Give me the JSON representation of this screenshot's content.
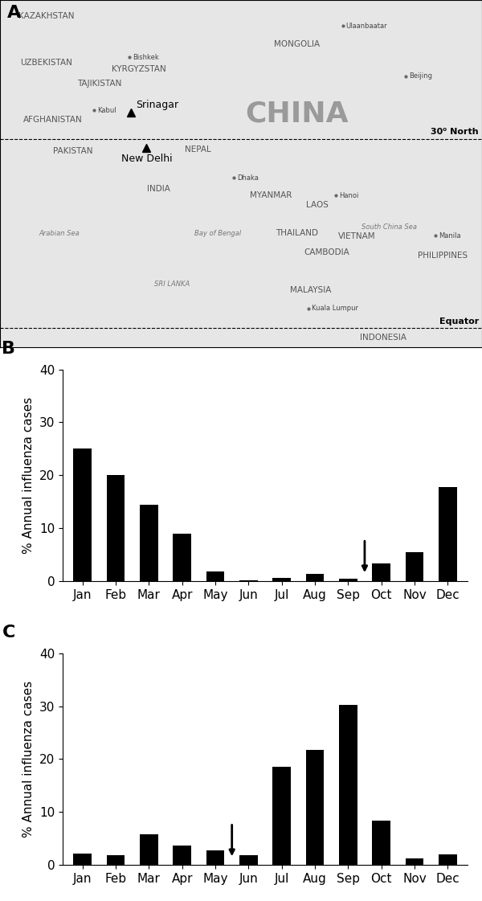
{
  "chart_data": [
    {
      "type": "map",
      "label": "A",
      "xlim": [
        55,
        128
      ],
      "ylim": [
        -3,
        52
      ],
      "tick_labels": false,
      "lines": [
        {
          "name": "30⁰ North",
          "lat": 30
        },
        {
          "name": "Equator",
          "lat": 0
        }
      ],
      "sites": [
        {
          "name": "Srinagar",
          "lon": 74.8,
          "lat": 34.1,
          "marker": "triangle"
        },
        {
          "name": "New Delhi",
          "lon": 77.2,
          "lat": 28.6,
          "marker": "triangle"
        }
      ],
      "places": [
        {
          "name": "KAZAKHSTAN",
          "lon": 62,
          "lat": 49.5,
          "kind": "country"
        },
        {
          "name": "MONGOLIA",
          "lon": 100,
          "lat": 45,
          "kind": "country"
        },
        {
          "name": "CHINA",
          "lon": 100,
          "lat": 34,
          "kind": "big"
        },
        {
          "name": "INDIA",
          "lon": 79,
          "lat": 22,
          "kind": "country"
        },
        {
          "name": "PAKISTAN",
          "lon": 66,
          "lat": 28,
          "kind": "country"
        },
        {
          "name": "AFGHANISTAN",
          "lon": 63,
          "lat": 33,
          "kind": "country"
        },
        {
          "name": "UZBEKISTAN",
          "lon": 62,
          "lat": 42,
          "kind": "country"
        },
        {
          "name": "KYRGYZSTAN",
          "lon": 76,
          "lat": 41,
          "kind": "country"
        },
        {
          "name": "TAJIKISTAN",
          "lon": 70,
          "lat": 38.8,
          "kind": "country"
        },
        {
          "name": "NEPAL",
          "lon": 85,
          "lat": 28.3,
          "kind": "country"
        },
        {
          "name": "MYANMAR",
          "lon": 96,
          "lat": 21,
          "kind": "country"
        },
        {
          "name": "LAOS",
          "lon": 103,
          "lat": 19.5,
          "kind": "country"
        },
        {
          "name": "THAILAND",
          "lon": 100,
          "lat": 15,
          "kind": "country"
        },
        {
          "name": "CAMBODIA",
          "lon": 104.5,
          "lat": 12,
          "kind": "country"
        },
        {
          "name": "VIETNAM",
          "lon": 109,
          "lat": 14.5,
          "kind": "country"
        },
        {
          "name": "PHILIPPINES",
          "lon": 122,
          "lat": 11.5,
          "kind": "country"
        },
        {
          "name": "MALAYSIA",
          "lon": 102,
          "lat": 6,
          "kind": "country"
        },
        {
          "name": "INDONESIA",
          "lon": 113,
          "lat": -1.5,
          "kind": "country"
        },
        {
          "name": "SRI LANKA",
          "lon": 81,
          "lat": 7,
          "kind": "sea"
        },
        {
          "name": "Arabian Sea",
          "lon": 64,
          "lat": 15,
          "kind": "sea"
        },
        {
          "name": "Bay of Bengal",
          "lon": 88,
          "lat": 15,
          "kind": "sea"
        },
        {
          "name": "South China Sea",
          "lon": 114,
          "lat": 16,
          "kind": "sea"
        },
        {
          "name": "Beijing",
          "lon": 116.4,
          "lat": 39.9,
          "kind": "city"
        },
        {
          "name": "Ulaanbaatar",
          "lon": 106.9,
          "lat": 47.9,
          "kind": "city"
        },
        {
          "name": "Dhaka",
          "lon": 90.4,
          "lat": 23.8,
          "kind": "city"
        },
        {
          "name": "Hanoi",
          "lon": 105.8,
          "lat": 21,
          "kind": "city"
        },
        {
          "name": "Manila",
          "lon": 121,
          "lat": 14.6,
          "kind": "city"
        },
        {
          "name": "Kuala Lumpur",
          "lon": 101.7,
          "lat": 3.1,
          "kind": "city"
        },
        {
          "name": "Kabul",
          "lon": 69.2,
          "lat": 34.5,
          "kind": "city"
        },
        {
          "name": "Bishkek",
          "lon": 74.6,
          "lat": 42.9,
          "kind": "city"
        }
      ]
    },
    {
      "type": "bar",
      "label": "B",
      "ylabel": "% Annual influenza cases",
      "categories": [
        "Jan",
        "Feb",
        "Mar",
        "Apr",
        "May",
        "Jun",
        "Jul",
        "Aug",
        "Sep",
        "Oct",
        "Nov",
        "Dec"
      ],
      "values": [
        25.1,
        20,
        14.4,
        9,
        1.9,
        0.2,
        0.6,
        1.4,
        0.5,
        3.3,
        5.4,
        17.7
      ],
      "color": "#000000",
      "ylim": [
        0,
        40
      ],
      "yticks": [
        0,
        10,
        20,
        30,
        40
      ],
      "arrow_between": [
        "Sep",
        "Oct"
      ]
    },
    {
      "type": "bar",
      "label": "C",
      "ylabel": "% Annual influenza cases",
      "categories": [
        "Jan",
        "Feb",
        "Mar",
        "Apr",
        "May",
        "Jun",
        "Jul",
        "Aug",
        "Sep",
        "Oct",
        "Nov",
        "Dec"
      ],
      "values": [
        2.1,
        1.8,
        5.8,
        3.6,
        2.7,
        1.8,
        18.5,
        21.7,
        30.2,
        8.3,
        1.3,
        2.0
      ],
      "color": "#000000",
      "ylim": [
        0,
        40
      ],
      "yticks": [
        0,
        10,
        20,
        30,
        40
      ],
      "arrow_between": [
        "May",
        "Jun"
      ]
    }
  ]
}
